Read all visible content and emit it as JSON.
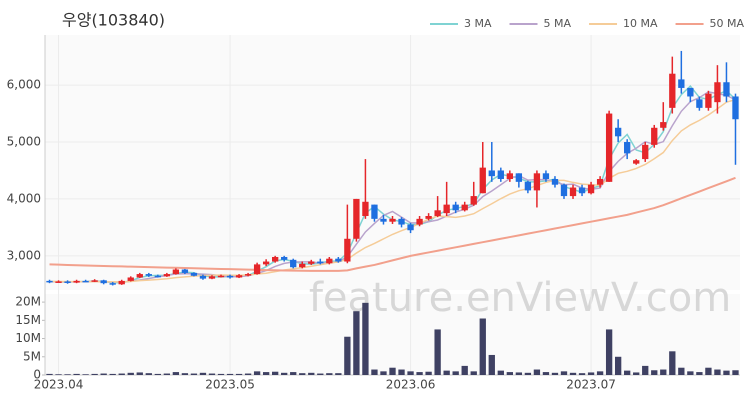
{
  "chart_data": {
    "type": "candlestick",
    "title": "우양(103840)",
    "watermark": "feature.enViewV.com",
    "xlim": [
      -0.5,
      76.5
    ],
    "xticks": [
      {
        "value": 1,
        "label": "2023.04"
      },
      {
        "value": 20,
        "label": "2023.05"
      },
      {
        "value": 40,
        "label": "2023.06"
      },
      {
        "value": 60,
        "label": "2023.07"
      }
    ],
    "ylim": [
      2400,
      6880
    ],
    "yticks": [
      {
        "value": 3000,
        "label": "3,000"
      },
      {
        "value": 4000,
        "label": "4,000"
      },
      {
        "value": 5000,
        "label": "5,000"
      },
      {
        "value": 6000,
        "label": "6,000"
      }
    ],
    "grid": true,
    "legend": "top-right",
    "up_color": "#e5262a",
    "down_color": "#1f6fe0",
    "open": [
      2560,
      2540,
      2550,
      2530,
      2560,
      2550,
      2570,
      2520,
      2500,
      2560,
      2620,
      2680,
      2650,
      2640,
      2680,
      2760,
      2700,
      2650,
      2600,
      2640,
      2650,
      2620,
      2660,
      2680,
      2850,
      2900,
      2980,
      2930,
      2800,
      2860,
      2900,
      2870,
      2950,
      2900,
      3300,
      3700,
      3900,
      3650,
      3600,
      3650,
      3550,
      3550,
      3650,
      3700,
      3750,
      3900,
      3800,
      3900,
      4100,
      4500,
      4500,
      4350,
      4450,
      4300,
      4150,
      4450,
      4350,
      4250,
      4050,
      4200,
      4100,
      4250,
      4300,
      5250,
      5000,
      4620,
      4700,
      4950,
      5250,
      5600,
      6100,
      5950,
      5750,
      5600,
      5700,
      6050,
      5800
    ],
    "high": [
      2580,
      2570,
      2570,
      2580,
      2580,
      2590,
      2580,
      2540,
      2580,
      2640,
      2700,
      2700,
      2670,
      2700,
      2780,
      2770,
      2710,
      2670,
      2660,
      2670,
      2670,
      2680,
      2700,
      2880,
      2940,
      3000,
      3000,
      2950,
      2900,
      2930,
      2950,
      2980,
      2980,
      3900,
      4000,
      4700,
      3900,
      3720,
      3700,
      3680,
      3580,
      3700,
      3750,
      4050,
      4300,
      3950,
      3950,
      4300,
      5000,
      5000,
      4550,
      4500,
      4450,
      4320,
      4500,
      4500,
      4400,
      4270,
      4250,
      4250,
      4300,
      4400,
      5550,
      5400,
      5050,
      4700,
      5000,
      5300,
      5700,
      6500,
      6600,
      5950,
      5800,
      5900,
      6350,
      6400,
      5850
    ],
    "low": [
      2520,
      2530,
      2510,
      2520,
      2540,
      2540,
      2500,
      2480,
      2490,
      2550,
      2610,
      2630,
      2620,
      2630,
      2670,
      2680,
      2640,
      2580,
      2590,
      2620,
      2600,
      2610,
      2640,
      2670,
      2820,
      2880,
      2900,
      2780,
      2780,
      2840,
      2850,
      2850,
      2880,
      2870,
      3250,
      3650,
      3600,
      3550,
      3560,
      3500,
      3400,
      3520,
      3620,
      3680,
      3700,
      3750,
      3780,
      3880,
      4100,
      4300,
      4300,
      4300,
      4200,
      4100,
      3850,
      4300,
      4200,
      4000,
      4000,
      4050,
      4080,
      4200,
      4300,
      5000,
      4700,
      4600,
      4650,
      4900,
      5200,
      5500,
      5850,
      5700,
      5550,
      5550,
      5500,
      5700,
      4600
    ],
    "close": [
      2540,
      2550,
      2530,
      2560,
      2550,
      2570,
      2520,
      2500,
      2560,
      2620,
      2680,
      2650,
      2640,
      2680,
      2760,
      2700,
      2650,
      2600,
      2640,
      2650,
      2620,
      2660,
      2680,
      2850,
      2900,
      2980,
      2930,
      2800,
      2860,
      2900,
      2870,
      2950,
      2900,
      3300,
      4000,
      3950,
      3650,
      3600,
      3650,
      3550,
      3450,
      3650,
      3700,
      3800,
      3900,
      3800,
      3900,
      4050,
      4550,
      4400,
      4350,
      4450,
      4300,
      4150,
      4450,
      4350,
      4250,
      4050,
      4200,
      4100,
      4250,
      4350,
      5500,
      5100,
      4800,
      4680,
      4950,
      5250,
      5350,
      6200,
      5950,
      5800,
      5600,
      5850,
      6050,
      5800,
      5400
    ],
    "series": [
      {
        "name": "3 MA",
        "color": "#7fd3d3",
        "values": [
          2550,
          2545,
          2540,
          2547,
          2547,
          2560,
          2547,
          2530,
          2527,
          2560,
          2620,
          2650,
          2657,
          2657,
          2693,
          2713,
          2703,
          2650,
          2630,
          2630,
          2637,
          2643,
          2653,
          2730,
          2810,
          2910,
          2937,
          2903,
          2863,
          2853,
          2877,
          2907,
          2907,
          3050,
          3400,
          3750,
          3867,
          3733,
          3633,
          3600,
          3550,
          3550,
          3600,
          3717,
          3800,
          3833,
          3867,
          3917,
          4167,
          4333,
          4433,
          4400,
          4367,
          4300,
          4300,
          4317,
          4350,
          4217,
          4167,
          4117,
          4183,
          4233,
          4700,
          4983,
          5133,
          4860,
          4810,
          4960,
          5183,
          5600,
          5833,
          5983,
          5783,
          5750,
          5833,
          5900,
          5750
        ]
      },
      {
        "name": "5 MA",
        "color": "#b9a3cc",
        "values": [
          2545,
          2545,
          2540,
          2545,
          2546,
          2552,
          2546,
          2540,
          2540,
          2554,
          2576,
          2602,
          2630,
          2654,
          2682,
          2686,
          2686,
          2678,
          2670,
          2648,
          2632,
          2634,
          2650,
          2692,
          2742,
          2814,
          2868,
          2892,
          2894,
          2894,
          2872,
          2876,
          2896,
          2984,
          3204,
          3420,
          3570,
          3710,
          3780,
          3680,
          3580,
          3580,
          3600,
          3630,
          3700,
          3770,
          3820,
          3890,
          4040,
          4140,
          4250,
          4360,
          4410,
          4330,
          4340,
          4340,
          4300,
          4250,
          4260,
          4190,
          4170,
          4190,
          4480,
          4660,
          4800,
          4890,
          5006,
          4956,
          5006,
          5286,
          5540,
          5710,
          5780,
          5880,
          5850,
          5820,
          5740
        ]
      },
      {
        "name": "10 MA",
        "color": "#f5cc98",
        "values": [
          2550,
          2550,
          2548,
          2548,
          2547,
          2548,
          2545,
          2543,
          2542,
          2550,
          2564,
          2574,
          2585,
          2597,
          2617,
          2631,
          2644,
          2652,
          2660,
          2664,
          2659,
          2660,
          2664,
          2681,
          2695,
          2723,
          2751,
          2771,
          2793,
          2818,
          2843,
          2872,
          2894,
          2939,
          3049,
          3146,
          3218,
          3298,
          3377,
          3442,
          3500,
          3570,
          3645,
          3700,
          3690,
          3675,
          3700,
          3740,
          3830,
          3915,
          4005,
          4085,
          4145,
          4180,
          4235,
          4290,
          4325,
          4325,
          4290,
          4260,
          4250,
          4240,
          4360,
          4450,
          4485,
          4535,
          4605,
          4705,
          4815,
          5025,
          5195,
          5300,
          5380,
          5475,
          5585,
          5700,
          5745
        ]
      },
      {
        "name": "50 MA",
        "color": "#f2a08c",
        "values": [
          2850,
          2845,
          2840,
          2835,
          2830,
          2826,
          2822,
          2818,
          2814,
          2810,
          2806,
          2802,
          2798,
          2794,
          2790,
          2786,
          2782,
          2778,
          2774,
          2770,
          2766,
          2762,
          2758,
          2754,
          2750,
          2746,
          2742,
          2740,
          2738,
          2736,
          2735,
          2735,
          2736,
          2745,
          2780,
          2810,
          2840,
          2880,
          2920,
          2960,
          3000,
          3030,
          3060,
          3090,
          3120,
          3150,
          3180,
          3210,
          3240,
          3270,
          3300,
          3330,
          3360,
          3390,
          3420,
          3450,
          3480,
          3510,
          3540,
          3570,
          3600,
          3630,
          3660,
          3690,
          3720,
          3760,
          3800,
          3840,
          3890,
          3950,
          4010,
          4070,
          4130,
          4190,
          4250,
          4310,
          4370
        ]
      }
    ],
    "volume": {
      "color": "#3f4163",
      "ylim": [
        0,
        21.4
      ],
      "yticks": [
        0,
        {
          "value": 5,
          "label": "5M"
        },
        {
          "value": 10,
          "label": "10M"
        },
        {
          "value": 15,
          "label": "15M"
        },
        {
          "value": 20,
          "label": "20M"
        }
      ],
      "values": [
        0.3,
        0.2,
        0.2,
        0.3,
        0.2,
        0.3,
        0.4,
        0.3,
        0.4,
        0.6,
        0.7,
        0.5,
        0.3,
        0.4,
        0.8,
        0.5,
        0.4,
        0.6,
        0.4,
        0.3,
        0.3,
        0.3,
        0.4,
        1.0,
        0.8,
        0.9,
        0.6,
        0.8,
        0.5,
        0.6,
        0.4,
        0.5,
        0.5,
        10.5,
        17.5,
        19.8,
        1.5,
        1.0,
        2.0,
        1.5,
        1.0,
        0.8,
        0.9,
        12.5,
        1.2,
        1.0,
        2.5,
        1.0,
        15.5,
        5.5,
        1.2,
        0.8,
        0.7,
        0.6,
        1.5,
        0.8,
        0.6,
        1.0,
        0.6,
        0.5,
        0.7,
        1.0,
        12.5,
        5.0,
        1.2,
        0.7,
        2.5,
        1.3,
        1.5,
        6.5,
        2.0,
        1.0,
        0.8,
        2.0,
        1.5,
        1.2,
        1.3
      ]
    }
  }
}
